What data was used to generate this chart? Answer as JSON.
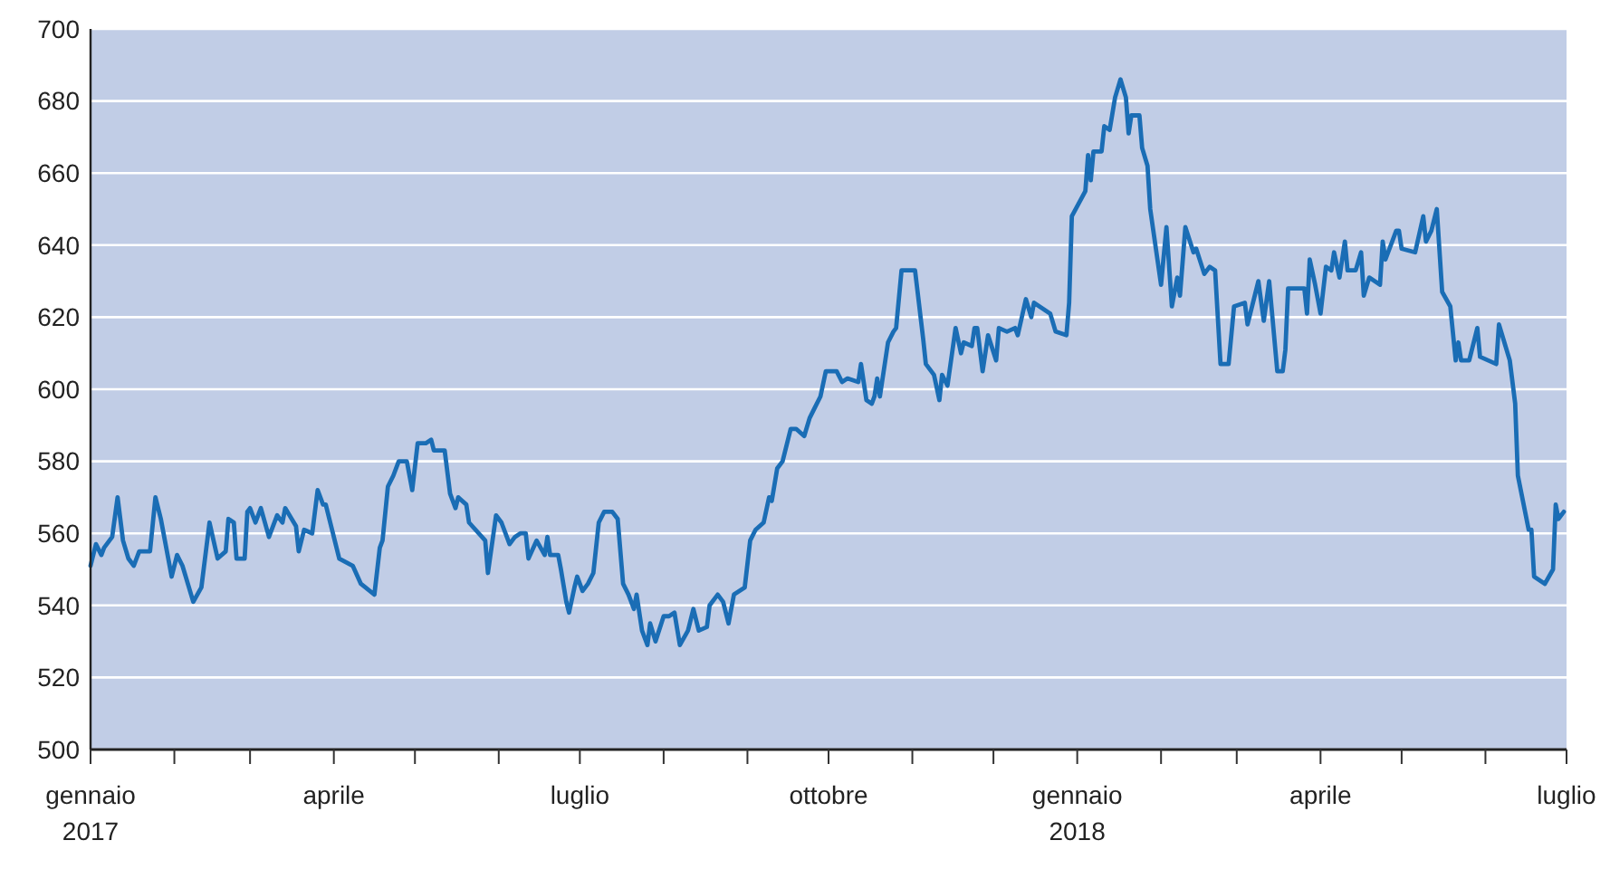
{
  "chart_data": {
    "type": "line",
    "grid": "y",
    "xlim": [
      "2017-01-01",
      "2018-07-01"
    ],
    "ylim": [
      500,
      700
    ],
    "yticks": [
      500,
      520,
      540,
      560,
      580,
      600,
      620,
      640,
      660,
      680,
      700
    ],
    "xticks": [
      {
        "value": "2017-01-01",
        "label": "gennaio\n2017"
      },
      {
        "value": "2017-02-01",
        "label": null
      },
      {
        "value": "2017-03-01",
        "label": null
      },
      {
        "value": "2017-04-01",
        "label": "aprile"
      },
      {
        "value": "2017-05-01",
        "label": null
      },
      {
        "value": "2017-06-01",
        "label": null
      },
      {
        "value": "2017-07-01",
        "label": "luglio"
      },
      {
        "value": "2017-08-01",
        "label": null
      },
      {
        "value": "2017-09-01",
        "label": null
      },
      {
        "value": "2017-10-01",
        "label": "ottobre"
      },
      {
        "value": "2017-11-01",
        "label": null
      },
      {
        "value": "2017-12-01",
        "label": null
      },
      {
        "value": "2018-01-01",
        "label": "gennaio\n2018"
      },
      {
        "value": "2018-02-01",
        "label": null
      },
      {
        "value": "2018-03-01",
        "label": null
      },
      {
        "value": "2018-04-01",
        "label": "aprile"
      },
      {
        "value": "2018-05-01",
        "label": null
      },
      {
        "value": "2018-06-01",
        "label": null
      },
      {
        "value": "2018-07-01",
        "label": "luglio"
      }
    ],
    "series": [
      {
        "color": "#1a6db5",
        "x": [
          "2017-01-01",
          "2017-01-03",
          "2017-01-05",
          "2017-01-06",
          "2017-01-09",
          "2017-01-11",
          "2017-01-13",
          "2017-01-15",
          "2017-01-17",
          "2017-01-19",
          "2017-01-23",
          "2017-01-25",
          "2017-01-27",
          "2017-01-31",
          "2017-02-02",
          "2017-02-04",
          "2017-02-08",
          "2017-02-11",
          "2017-02-14",
          "2017-02-17",
          "2017-02-20",
          "2017-02-21",
          "2017-02-23",
          "2017-02-24",
          "2017-02-27",
          "2017-02-28",
          "2017-03-01",
          "2017-03-03",
          "2017-03-05",
          "2017-03-08",
          "2017-03-11",
          "2017-03-13",
          "2017-03-14",
          "2017-03-18",
          "2017-03-19",
          "2017-03-21",
          "2017-03-24",
          "2017-03-26",
          "2017-03-28",
          "2017-03-29",
          "2017-04-03",
          "2017-04-08",
          "2017-04-11",
          "2017-04-16",
          "2017-04-18",
          "2017-04-19",
          "2017-04-21",
          "2017-04-23",
          "2017-04-25",
          "2017-04-28",
          "2017-04-30",
          "2017-05-02",
          "2017-05-05",
          "2017-05-07",
          "2017-05-08",
          "2017-05-12",
          "2017-05-14",
          "2017-05-16",
          "2017-05-17",
          "2017-05-20",
          "2017-05-21",
          "2017-05-27",
          "2017-05-28",
          "2017-05-31",
          "2017-06-02",
          "2017-06-05",
          "2017-06-07",
          "2017-06-09",
          "2017-06-11",
          "2017-06-12",
          "2017-06-15",
          "2017-06-18",
          "2017-06-19",
          "2017-06-20",
          "2017-06-23",
          "2017-06-24",
          "2017-06-26",
          "2017-06-27",
          "2017-06-29",
          "2017-06-30",
          "2017-07-02",
          "2017-07-04",
          "2017-07-06",
          "2017-07-08",
          "2017-07-10",
          "2017-07-13",
          "2017-07-15",
          "2017-07-17",
          "2017-07-19",
          "2017-07-21",
          "2017-07-22",
          "2017-07-24",
          "2017-07-26",
          "2017-07-27",
          "2017-07-29",
          "2017-08-01",
          "2017-08-03",
          "2017-08-05",
          "2017-08-07",
          "2017-08-10",
          "2017-08-12",
          "2017-08-14",
          "2017-08-17",
          "2017-08-18",
          "2017-08-21",
          "2017-08-23",
          "2017-08-25",
          "2017-08-27",
          "2017-08-31",
          "2017-09-02",
          "2017-09-04",
          "2017-09-07",
          "2017-09-09",
          "2017-09-10",
          "2017-09-12",
          "2017-09-14",
          "2017-09-17",
          "2017-09-19",
          "2017-09-22",
          "2017-09-24",
          "2017-09-26",
          "2017-09-28",
          "2017-09-30",
          "2017-10-04",
          "2017-10-06",
          "2017-10-08",
          "2017-10-12",
          "2017-10-13",
          "2017-10-15",
          "2017-10-17",
          "2017-10-18",
          "2017-10-19",
          "2017-10-20",
          "2017-10-23",
          "2017-10-25",
          "2017-10-26",
          "2017-10-28",
          "2017-11-02",
          "2017-11-05",
          "2017-11-06",
          "2017-11-09",
          "2017-11-11",
          "2017-11-12",
          "2017-11-14",
          "2017-11-17",
          "2017-11-19",
          "2017-11-20",
          "2017-11-23",
          "2017-11-24",
          "2017-11-25",
          "2017-11-27",
          "2017-11-29",
          "2017-12-02",
          "2017-12-03",
          "2017-12-06",
          "2017-12-09",
          "2017-12-10",
          "2017-12-13",
          "2017-12-15",
          "2017-12-16",
          "2017-12-18",
          "2017-12-22",
          "2017-12-24",
          "2017-12-28",
          "2017-12-29",
          "2017-12-30",
          "2018-01-04",
          "2018-01-05",
          "2018-01-06",
          "2018-01-07",
          "2018-01-10",
          "2018-01-11",
          "2018-01-13",
          "2018-01-15",
          "2018-01-17",
          "2018-01-19",
          "2018-01-20",
          "2018-01-21",
          "2018-01-24",
          "2018-01-25",
          "2018-01-27",
          "2018-01-28",
          "2018-02-01",
          "2018-02-03",
          "2018-02-05",
          "2018-02-07",
          "2018-02-08",
          "2018-02-10",
          "2018-02-13",
          "2018-02-14",
          "2018-02-17",
          "2018-02-19",
          "2018-02-21",
          "2018-02-23",
          "2018-02-26",
          "2018-02-28",
          "2018-03-04",
          "2018-03-05",
          "2018-03-09",
          "2018-03-11",
          "2018-03-13",
          "2018-03-16",
          "2018-03-18",
          "2018-03-19",
          "2018-03-20",
          "2018-03-26",
          "2018-03-27",
          "2018-03-28",
          "2018-03-30",
          "2018-04-01",
          "2018-04-03",
          "2018-04-05",
          "2018-04-06",
          "2018-04-08",
          "2018-04-10",
          "2018-04-11",
          "2018-04-14",
          "2018-04-16",
          "2018-04-17",
          "2018-04-19",
          "2018-04-23",
          "2018-04-24",
          "2018-04-25",
          "2018-04-29",
          "2018-04-30",
          "2018-05-01",
          "2018-05-06",
          "2018-05-09",
          "2018-05-10",
          "2018-05-12",
          "2018-05-14",
          "2018-05-16",
          "2018-05-19",
          "2018-05-21",
          "2018-05-22",
          "2018-05-23",
          "2018-05-26",
          "2018-05-29",
          "2018-05-30",
          "2018-06-05",
          "2018-06-06",
          "2018-06-08",
          "2018-06-10",
          "2018-06-12",
          "2018-06-13",
          "2018-06-17",
          "2018-06-18",
          "2018-06-19",
          "2018-06-23",
          "2018-06-26",
          "2018-06-27",
          "2018-06-28",
          "2018-06-30"
        ],
        "values": [
          551,
          557,
          554,
          556,
          559,
          570,
          558,
          553,
          551,
          555,
          555,
          570,
          564,
          548,
          554,
          551,
          541,
          545,
          563,
          553,
          555,
          564,
          563,
          553,
          553,
          566,
          567,
          563,
          567,
          559,
          565,
          563,
          567,
          562,
          555,
          561,
          560,
          572,
          568,
          568,
          553,
          551,
          546,
          543,
          556,
          558,
          573,
          576,
          580,
          580,
          572,
          585,
          585,
          586,
          583,
          583,
          571,
          567,
          570,
          568,
          563,
          558,
          549,
          565,
          563,
          557,
          559,
          560,
          560,
          553,
          558,
          554,
          559,
          554,
          554,
          550,
          541,
          538,
          545,
          548,
          544,
          546,
          549,
          563,
          566,
          566,
          564,
          546,
          543,
          539,
          543,
          533,
          529,
          535,
          530,
          537,
          537,
          538,
          529,
          533,
          539,
          533,
          534,
          540,
          543,
          541,
          535,
          543,
          545,
          558,
          561,
          563,
          570,
          569,
          578,
          580,
          589,
          589,
          587,
          592,
          595,
          598,
          605,
          605,
          602,
          603,
          602,
          607,
          597,
          596,
          598,
          603,
          598,
          613,
          616,
          617,
          633,
          633,
          614,
          607,
          604,
          597,
          604,
          601,
          617,
          610,
          613,
          612,
          617,
          617,
          605,
          615,
          608,
          617,
          616,
          617,
          615,
          625,
          620,
          624,
          623,
          621,
          616,
          615,
          624,
          648,
          655,
          665,
          658,
          666,
          666,
          673,
          672,
          681,
          686,
          681,
          671,
          676,
          676,
          667,
          662,
          650,
          629,
          645,
          623,
          631,
          626,
          645,
          638,
          639,
          632,
          634,
          633,
          607,
          607,
          623,
          624,
          618,
          630,
          619,
          630,
          605,
          605,
          611,
          628,
          628,
          621,
          636,
          629,
          621,
          634,
          633,
          638,
          631,
          641,
          633,
          633,
          638,
          626,
          631,
          629,
          641,
          636,
          644,
          644,
          639,
          638,
          648,
          641,
          644,
          650,
          627,
          623,
          608,
          613,
          608,
          608,
          617,
          609,
          607,
          618,
          613,
          608,
          596,
          576,
          561,
          561,
          548,
          546,
          550,
          568,
          564,
          566
        ]
      }
    ]
  }
}
